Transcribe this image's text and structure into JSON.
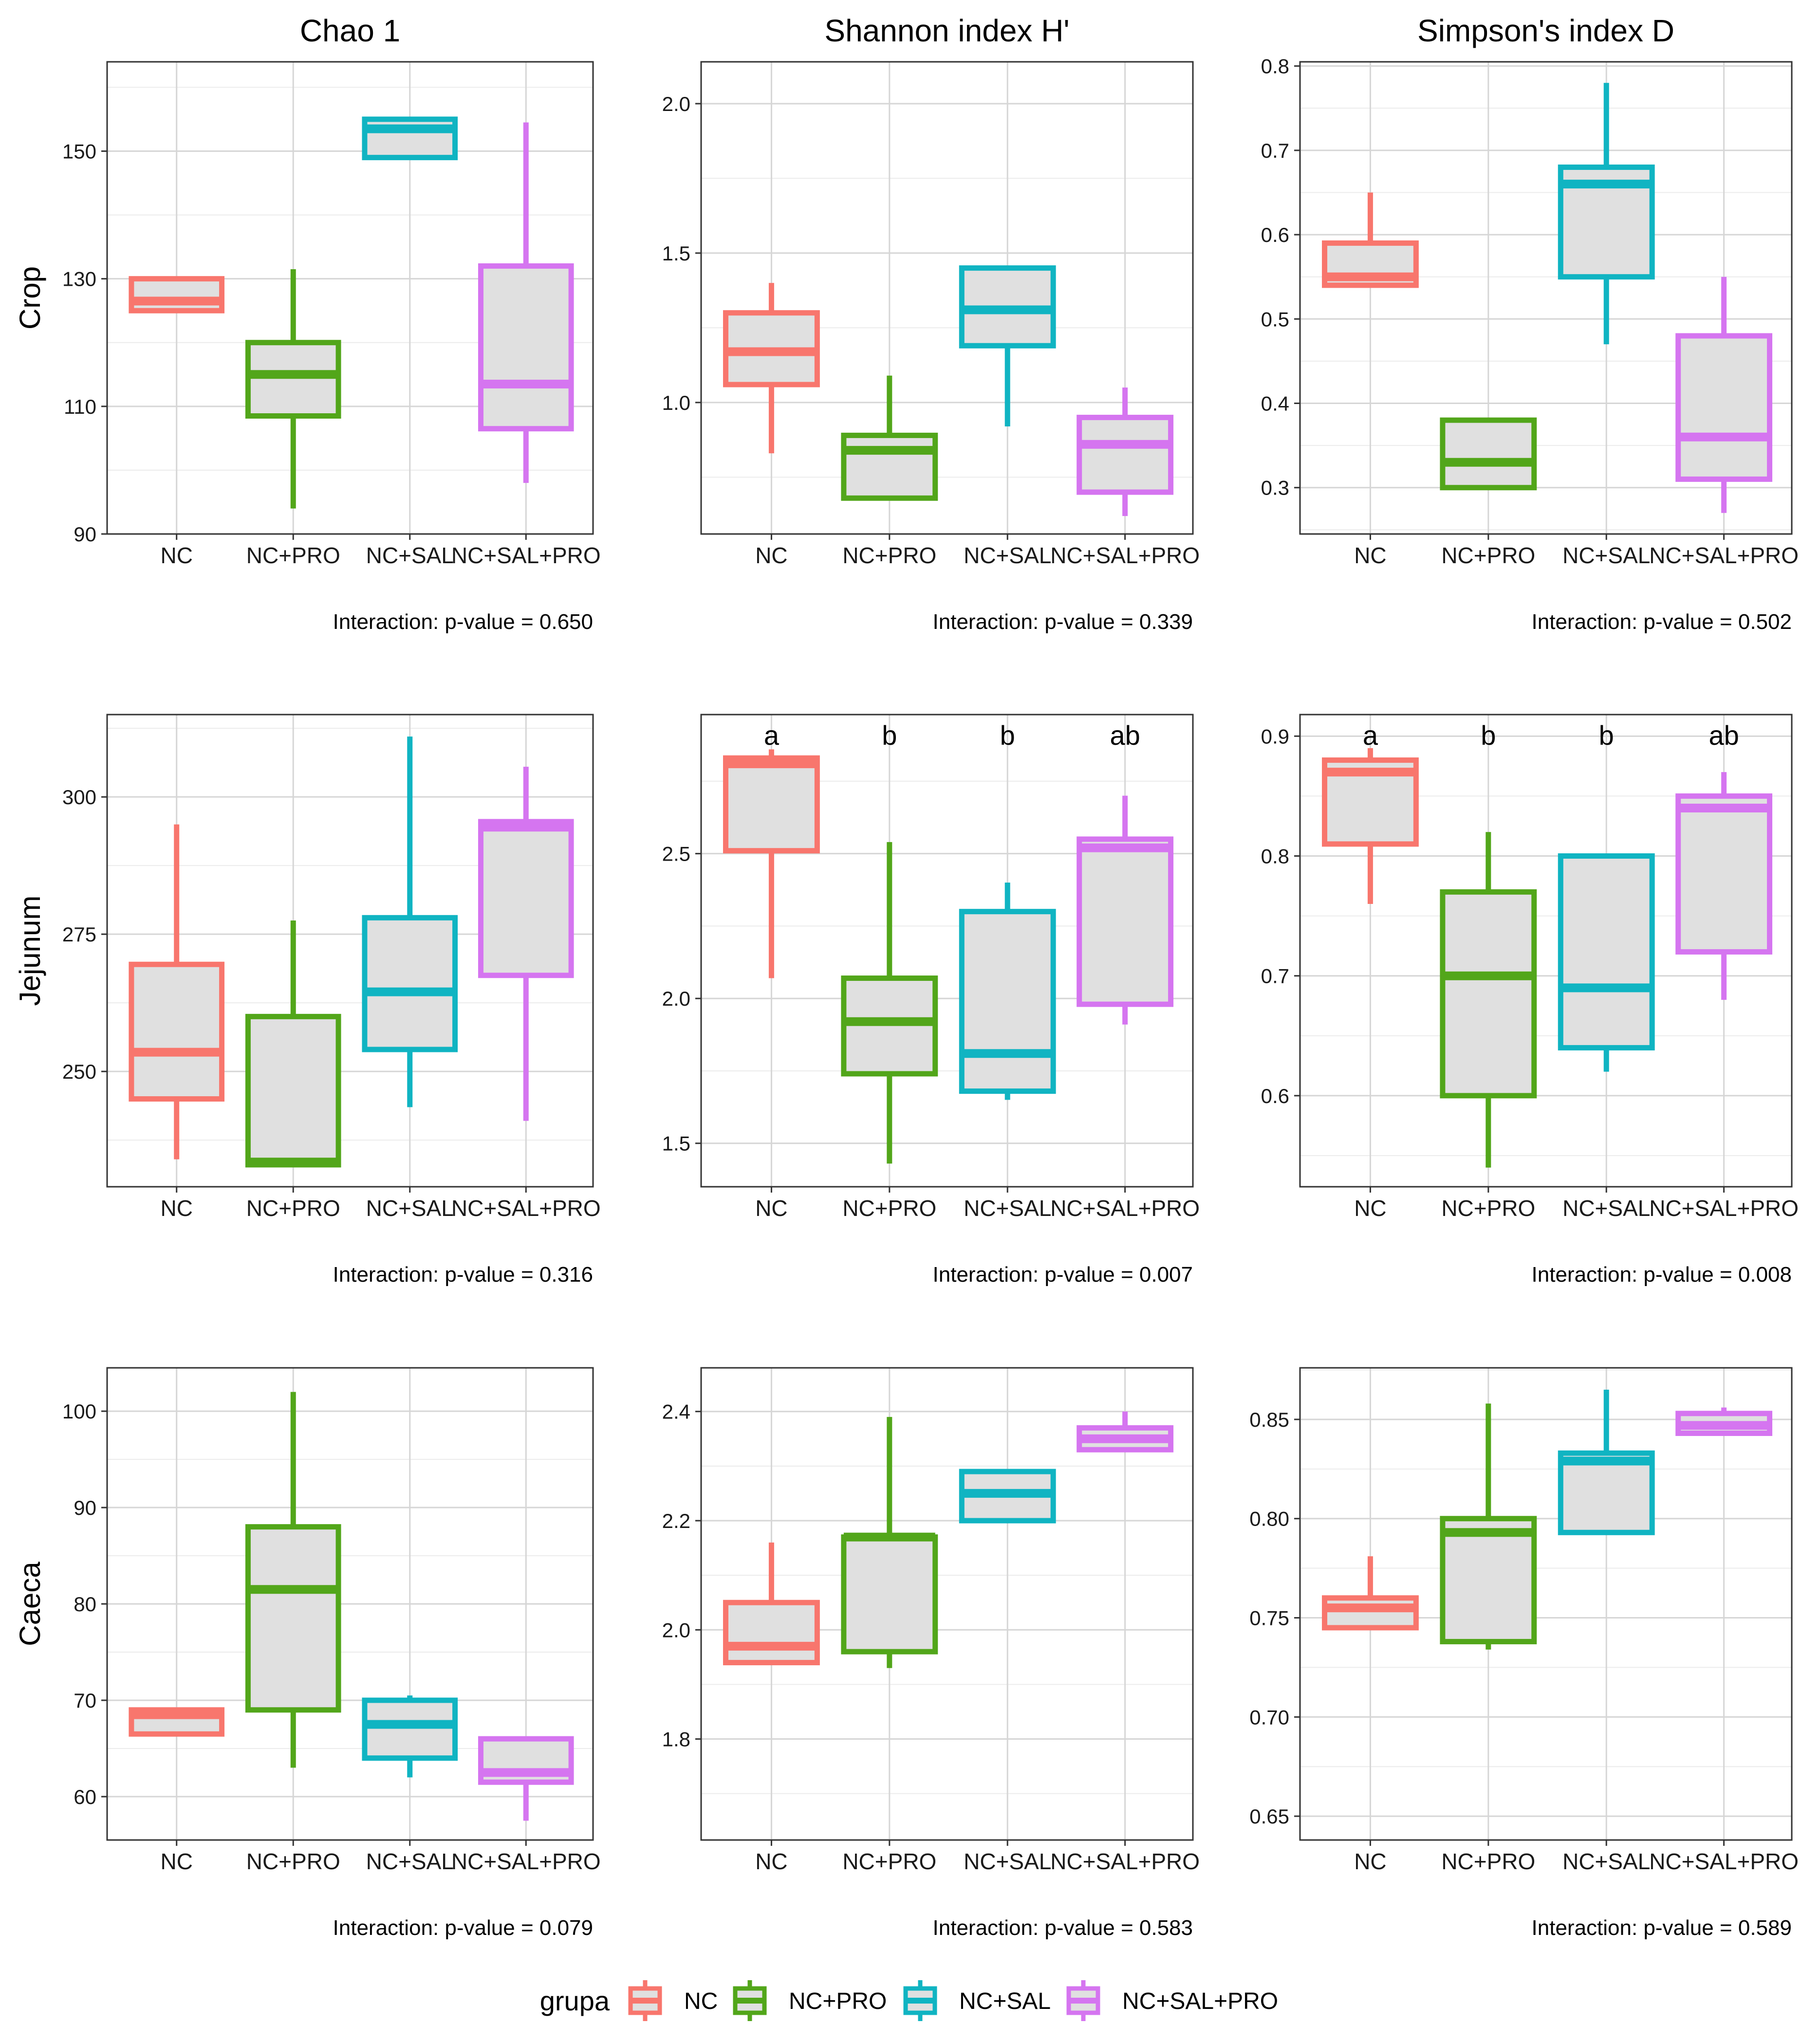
{
  "chart_data": {
    "type": "boxplot",
    "legend": {
      "title": "grupa",
      "position": "bottom",
      "items": [
        {
          "label": "NC",
          "color": "#F8766D"
        },
        {
          "label": "NC+PRO",
          "color": "#52A61A"
        },
        {
          "label": "NC+SAL",
          "color": "#10B4C2"
        },
        {
          "label": "NC+SAL+PRO",
          "color": "#D575F0"
        }
      ]
    },
    "categories": [
      "NC",
      "NC+PRO",
      "NC+SAL",
      "NC+SAL+PRO"
    ],
    "columns": [
      "Chao 1",
      "Shannon index H'",
      "Simpson's index D"
    ],
    "rows": [
      "Crop",
      "Jejunum",
      "Caeca"
    ],
    "panels": [
      {
        "row": "Crop",
        "metric": "Chao 1",
        "ylim": [
          90,
          164
        ],
        "yticks": [
          90,
          110,
          130,
          150
        ],
        "p_label": "Interaction: p-value = 0.650",
        "letters": [],
        "boxes": [
          {
            "group": "NC",
            "whisker_low": 125,
            "q1": 125,
            "median": 126.5,
            "q3": 130,
            "whisker_high": 130
          },
          {
            "group": "NC+PRO",
            "whisker_low": 94,
            "q1": 108.5,
            "median": 115,
            "q3": 120,
            "whisker_high": 131.5
          },
          {
            "group": "NC+SAL",
            "whisker_low": 149,
            "q1": 149,
            "median": 153.5,
            "q3": 155,
            "whisker_high": 155
          },
          {
            "group": "NC+SAL+PRO",
            "whisker_low": 98,
            "q1": 106.5,
            "median": 113.5,
            "q3": 132,
            "whisker_high": 154.5
          }
        ]
      },
      {
        "row": "Crop",
        "metric": "Shannon index H'",
        "ylim": [
          0.56,
          2.14
        ],
        "yticks": [
          1.0,
          1.5,
          2.0
        ],
        "p_label": "Interaction: p-value = 0.339",
        "letters": [],
        "boxes": [
          {
            "group": "NC",
            "whisker_low": 0.83,
            "q1": 1.06,
            "median": 1.17,
            "q3": 1.3,
            "whisker_high": 1.4
          },
          {
            "group": "NC+PRO",
            "whisker_low": 0.68,
            "q1": 0.68,
            "median": 0.84,
            "q3": 0.89,
            "whisker_high": 1.09
          },
          {
            "group": "NC+SAL",
            "whisker_low": 0.92,
            "q1": 1.19,
            "median": 1.31,
            "q3": 1.45,
            "whisker_high": 1.45
          },
          {
            "group": "NC+SAL+PRO",
            "whisker_low": 0.62,
            "q1": 0.7,
            "median": 0.86,
            "q3": 0.95,
            "whisker_high": 1.05
          }
        ]
      },
      {
        "row": "Crop",
        "metric": "Simpson's index D",
        "ylim": [
          0.245,
          0.805
        ],
        "yticks": [
          0.3,
          0.4,
          0.5,
          0.6,
          0.7,
          0.8
        ],
        "p_label": "Interaction: p-value = 0.502",
        "letters": [],
        "boxes": [
          {
            "group": "NC",
            "whisker_low": 0.54,
            "q1": 0.54,
            "median": 0.55,
            "q3": 0.59,
            "whisker_high": 0.65
          },
          {
            "group": "NC+PRO",
            "whisker_low": 0.3,
            "q1": 0.3,
            "median": 0.33,
            "q3": 0.38,
            "whisker_high": 0.38
          },
          {
            "group": "NC+SAL",
            "whisker_low": 0.47,
            "q1": 0.55,
            "median": 0.66,
            "q3": 0.68,
            "whisker_high": 0.78
          },
          {
            "group": "NC+SAL+PRO",
            "whisker_low": 0.27,
            "q1": 0.31,
            "median": 0.36,
            "q3": 0.48,
            "whisker_high": 0.55
          }
        ]
      },
      {
        "row": "Jejunum",
        "metric": "Chao 1",
        "ylim": [
          229,
          315
        ],
        "yticks": [
          250,
          275,
          300
        ],
        "p_label": "Interaction: p-value = 0.316",
        "letters": [],
        "boxes": [
          {
            "group": "NC",
            "whisker_low": 234,
            "q1": 245,
            "median": 253.5,
            "q3": 269.5,
            "whisker_high": 295
          },
          {
            "group": "NC+PRO",
            "whisker_low": 233,
            "q1": 233,
            "median": 233.5,
            "q3": 260,
            "whisker_high": 277.5
          },
          {
            "group": "NC+SAL",
            "whisker_low": 243.5,
            "q1": 254,
            "median": 264.5,
            "q3": 278,
            "whisker_high": 311
          },
          {
            "group": "NC+SAL+PRO",
            "whisker_low": 241,
            "q1": 267.5,
            "median": 294.5,
            "q3": 295.5,
            "whisker_high": 305.5
          }
        ]
      },
      {
        "row": "Jejunum",
        "metric": "Shannon index H'",
        "ylim": [
          1.35,
          2.98
        ],
        "yticks": [
          1.5,
          2.0,
          2.5
        ],
        "p_label": "Interaction: p-value = 0.007",
        "letters": [
          "a",
          "b",
          "b",
          "ab"
        ],
        "boxes": [
          {
            "group": "NC",
            "whisker_low": 2.07,
            "q1": 2.51,
            "median": 2.81,
            "q3": 2.83,
            "whisker_high": 2.86
          },
          {
            "group": "NC+PRO",
            "whisker_low": 1.43,
            "q1": 1.74,
            "median": 1.92,
            "q3": 2.07,
            "whisker_high": 2.54
          },
          {
            "group": "NC+SAL",
            "whisker_low": 1.65,
            "q1": 1.68,
            "median": 1.81,
            "q3": 2.3,
            "whisker_high": 2.4
          },
          {
            "group": "NC+SAL+PRO",
            "whisker_low": 1.91,
            "q1": 1.98,
            "median": 2.52,
            "q3": 2.55,
            "whisker_high": 2.7
          }
        ]
      },
      {
        "row": "Jejunum",
        "metric": "Simpson's index D",
        "ylim": [
          0.524,
          0.918
        ],
        "yticks": [
          0.6,
          0.7,
          0.8,
          0.9
        ],
        "p_label": "Interaction: p-value = 0.008",
        "letters": [
          "a",
          "b",
          "b",
          "ab"
        ],
        "boxes": [
          {
            "group": "NC",
            "whisker_low": 0.76,
            "q1": 0.81,
            "median": 0.87,
            "q3": 0.88,
            "whisker_high": 0.89
          },
          {
            "group": "NC+PRO",
            "whisker_low": 0.54,
            "q1": 0.6,
            "median": 0.7,
            "q3": 0.77,
            "whisker_high": 0.82
          },
          {
            "group": "NC+SAL",
            "whisker_low": 0.62,
            "q1": 0.64,
            "median": 0.69,
            "q3": 0.8,
            "whisker_high": 0.8
          },
          {
            "group": "NC+SAL+PRO",
            "whisker_low": 0.68,
            "q1": 0.72,
            "median": 0.84,
            "q3": 0.85,
            "whisker_high": 0.87
          }
        ]
      },
      {
        "row": "Caeca",
        "metric": "Chao 1",
        "ylim": [
          55.5,
          104.5
        ],
        "yticks": [
          60,
          70,
          80,
          90,
          100
        ],
        "p_label": "Interaction: p-value = 0.079",
        "letters": [],
        "boxes": [
          {
            "group": "NC",
            "whisker_low": 66.5,
            "q1": 66.5,
            "median": 68.5,
            "q3": 69,
            "whisker_high": 69
          },
          {
            "group": "NC+PRO",
            "whisker_low": 63,
            "q1": 69,
            "median": 81.5,
            "q3": 88,
            "whisker_high": 102
          },
          {
            "group": "NC+SAL",
            "whisker_low": 62,
            "q1": 64,
            "median": 67.5,
            "q3": 70,
            "whisker_high": 70.5
          },
          {
            "group": "NC+SAL+PRO",
            "whisker_low": 57.5,
            "q1": 61.5,
            "median": 62.5,
            "q3": 66,
            "whisker_high": 66
          }
        ]
      },
      {
        "row": "Caeca",
        "metric": "Shannon index H'",
        "ylim": [
          1.615,
          2.48
        ],
        "yticks": [
          1.8,
          2.0,
          2.2,
          2.4
        ],
        "p_label": "Interaction: p-value = 0.583",
        "letters": [],
        "boxes": [
          {
            "group": "NC",
            "whisker_low": 1.94,
            "q1": 1.94,
            "median": 1.97,
            "q3": 2.05,
            "whisker_high": 2.16
          },
          {
            "group": "NC+PRO",
            "whisker_low": 1.93,
            "q1": 1.96,
            "median": 2.17,
            "q3": 2.17,
            "whisker_high": 2.39
          },
          {
            "group": "NC+SAL",
            "whisker_low": 2.2,
            "q1": 2.2,
            "median": 2.25,
            "q3": 2.29,
            "whisker_high": 2.29
          },
          {
            "group": "NC+SAL+PRO",
            "whisker_low": 2.33,
            "q1": 2.33,
            "median": 2.35,
            "q3": 2.37,
            "whisker_high": 2.4
          }
        ]
      },
      {
        "row": "Caeca",
        "metric": "Simpson's index D",
        "ylim": [
          0.638,
          0.876
        ],
        "yticks": [
          0.65,
          0.7,
          0.75,
          0.8,
          0.85
        ],
        "p_label": "Interaction: p-value = 0.589",
        "letters": [],
        "boxes": [
          {
            "group": "NC",
            "whisker_low": 0.745,
            "q1": 0.745,
            "median": 0.755,
            "q3": 0.76,
            "whisker_high": 0.781
          },
          {
            "group": "NC+PRO",
            "whisker_low": 0.734,
            "q1": 0.738,
            "median": 0.793,
            "q3": 0.8,
            "whisker_high": 0.858
          },
          {
            "group": "NC+SAL",
            "whisker_low": 0.793,
            "q1": 0.793,
            "median": 0.829,
            "q3": 0.833,
            "whisker_high": 0.865
          },
          {
            "group": "NC+SAL+PRO",
            "whisker_low": 0.843,
            "q1": 0.843,
            "median": 0.847,
            "q3": 0.853,
            "whisker_high": 0.856
          }
        ]
      }
    ]
  }
}
